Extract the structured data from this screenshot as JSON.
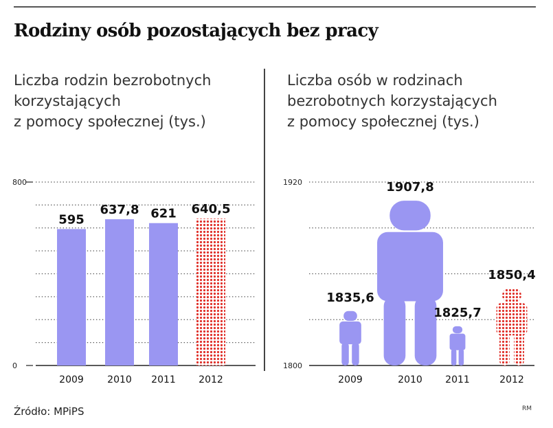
{
  "header": {
    "title": "Rodziny osób pozostających bez pracy"
  },
  "colors": {
    "bar_fill": "#9a96f2",
    "projection_dots": "#e0312a",
    "gridline": "#555555"
  },
  "chart_data": [
    {
      "type": "bar",
      "subtitle_lines": [
        "Liczba rodzin bezrobotnych",
        "korzystających",
        "z pomocy społecznej (tys.)"
      ],
      "categories": [
        "2009",
        "2010",
        "2011",
        "2012"
      ],
      "values": [
        595,
        637.8,
        621,
        640.5
      ],
      "value_labels": [
        "595",
        "637,8",
        "621",
        "640,5"
      ],
      "yticks": [
        "800",
        "0"
      ],
      "ylim": [
        0,
        800
      ],
      "grid": true,
      "last_value_style": "dotted-red"
    },
    {
      "type": "pictogram",
      "subtitle_lines": [
        "Liczba osób w rodzinach",
        "bezrobotnych korzystających",
        "z pomocy społecznej (tys.)"
      ],
      "categories": [
        "2009",
        "2010",
        "2011",
        "2012"
      ],
      "values": [
        1835.6,
        1907.8,
        1825.7,
        1850.4
      ],
      "value_labels": [
        "1835,6",
        "1907,8",
        "1825,7",
        "1850,4"
      ],
      "yticks": [
        "1920",
        "1800"
      ],
      "ylim": [
        1800,
        1920
      ],
      "grid": true,
      "last_value_style": "dotted-red"
    }
  ],
  "footer": {
    "source": "Źródło: MPiPS",
    "credit": "RM"
  }
}
